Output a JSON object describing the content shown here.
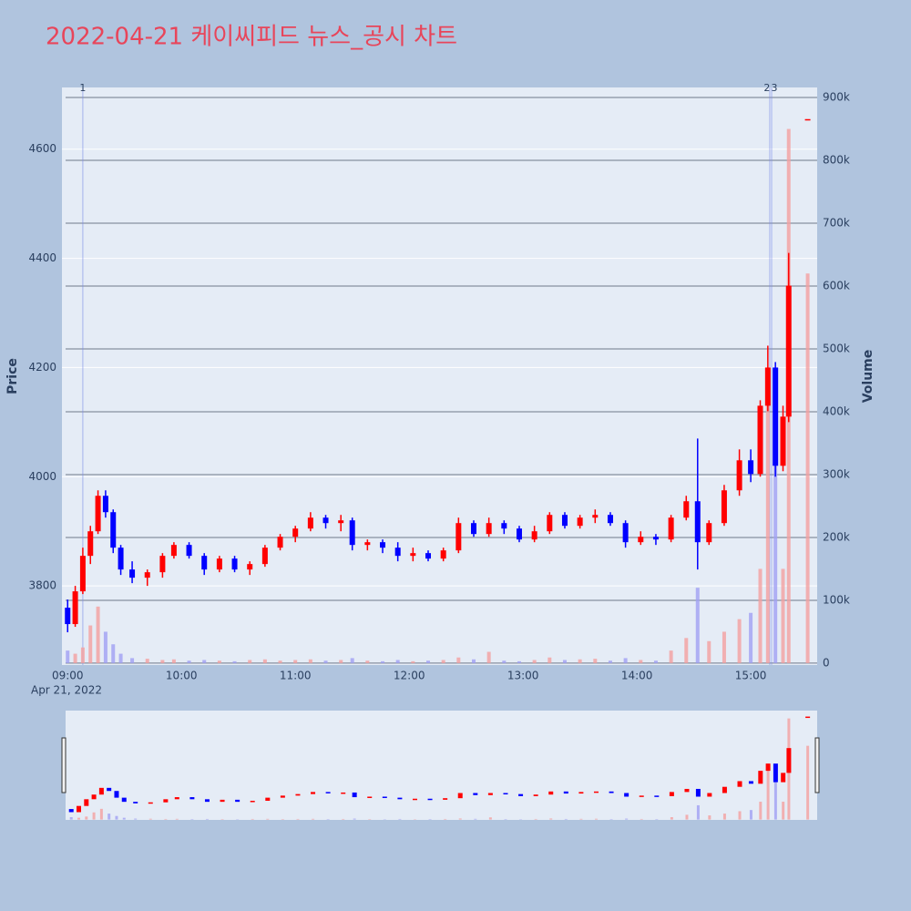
{
  "chart_data": {
    "type": "candlestick",
    "title": "2022-04-21 케이씨피드 뉴스_공시 차트",
    "ylabel": "Price",
    "y2label": "Volume",
    "date_label": "Apr 21, 2022",
    "x": [
      "09:00",
      "09:04",
      "09:08",
      "09:12",
      "09:16",
      "09:20",
      "09:24",
      "09:28",
      "09:34",
      "09:42",
      "09:50",
      "09:56",
      "10:04",
      "10:12",
      "10:20",
      "10:28",
      "10:36",
      "10:44",
      "10:52",
      "11:00",
      "11:08",
      "11:16",
      "11:24",
      "11:30",
      "11:38",
      "11:46",
      "11:54",
      "12:02",
      "12:10",
      "12:18",
      "12:26",
      "12:34",
      "12:42",
      "12:50",
      "12:58",
      "13:06",
      "13:14",
      "13:22",
      "13:30",
      "13:38",
      "13:46",
      "13:54",
      "14:02",
      "14:10",
      "14:18",
      "14:26",
      "14:32",
      "14:38",
      "14:46",
      "14:54",
      "15:00",
      "15:05",
      "15:09",
      "15:13",
      "15:17",
      "15:20",
      "15:30"
    ],
    "open": [
      3760,
      3730,
      3790,
      3855,
      3900,
      3965,
      3935,
      3870,
      3830,
      3815,
      3825,
      3855,
      3875,
      3855,
      3830,
      3850,
      3830,
      3840,
      3870,
      3890,
      3905,
      3925,
      3915,
      3920,
      3875,
      3880,
      3870,
      3855,
      3860,
      3850,
      3865,
      3915,
      3895,
      3915,
      3905,
      3885,
      3900,
      3930,
      3910,
      3925,
      3930,
      3915,
      3880,
      3890,
      3885,
      3925,
      3955,
      3880,
      3915,
      3975,
      4030,
      4005,
      4130,
      4200,
      4020,
      4110,
      4655
    ],
    "high": [
      3775,
      3800,
      3870,
      3910,
      3975,
      3975,
      3940,
      3875,
      3845,
      3830,
      3860,
      3880,
      3880,
      3860,
      3855,
      3855,
      3845,
      3875,
      3895,
      3910,
      3935,
      3930,
      3930,
      3925,
      3885,
      3885,
      3880,
      3870,
      3865,
      3870,
      3925,
      3920,
      3925,
      3920,
      3910,
      3910,
      3935,
      3935,
      3930,
      3940,
      3935,
      3920,
      3900,
      3895,
      3930,
      3965,
      4070,
      3920,
      3985,
      4050,
      4050,
      4140,
      4240,
      4210,
      4130,
      4410,
      4655
    ],
    "low": [
      3715,
      3725,
      3785,
      3840,
      3895,
      3925,
      3860,
      3820,
      3805,
      3800,
      3815,
      3850,
      3850,
      3820,
      3825,
      3825,
      3820,
      3835,
      3865,
      3880,
      3900,
      3905,
      3900,
      3865,
      3865,
      3860,
      3845,
      3845,
      3845,
      3845,
      3860,
      3890,
      3890,
      3895,
      3880,
      3880,
      3895,
      3905,
      3905,
      3915,
      3910,
      3870,
      3875,
      3875,
      3880,
      3920,
      3830,
      3875,
      3910,
      3965,
      3990,
      4000,
      4120,
      4000,
      4010,
      4100,
      4655
    ],
    "close": [
      3730,
      3790,
      3855,
      3900,
      3965,
      3935,
      3870,
      3830,
      3815,
      3825,
      3855,
      3875,
      3855,
      3830,
      3850,
      3830,
      3840,
      3870,
      3890,
      3905,
      3925,
      3915,
      3920,
      3875,
      3880,
      3870,
      3855,
      3860,
      3850,
      3865,
      3915,
      3895,
      3915,
      3905,
      3885,
      3900,
      3930,
      3910,
      3925,
      3930,
      3915,
      3880,
      3890,
      3885,
      3925,
      3955,
      3880,
      3915,
      3975,
      4030,
      4005,
      4130,
      4200,
      4020,
      4110,
      4350,
      4655
    ],
    "volume": [
      20000,
      15000,
      25000,
      60000,
      90000,
      50000,
      30000,
      15000,
      8000,
      7000,
      5000,
      6000,
      4000,
      5000,
      4000,
      3000,
      5000,
      6000,
      4000,
      5000,
      6000,
      4000,
      5000,
      8000,
      4000,
      3000,
      5000,
      3000,
      4000,
      5000,
      9000,
      6000,
      18000,
      4000,
      3000,
      5000,
      9000,
      5000,
      6000,
      7000,
      4000,
      8000,
      5000,
      4000,
      20000,
      40000,
      120000,
      35000,
      50000,
      70000,
      80000,
      150000,
      470000,
      380000,
      150000,
      850000,
      620000
    ],
    "increasing_color": "#ff0000",
    "decreasing_color": "#0000ff",
    "volume_increasing_color": "#f4a0a0",
    "volume_decreasing_color": "#a0a0f4",
    "title_color": "#e8455a",
    "xlim": [
      "08:57",
      "15:35"
    ],
    "xticks": [
      "09:00",
      "10:00",
      "11:00",
      "12:00",
      "13:00",
      "14:00",
      "15:00"
    ],
    "ylim": [
      3655,
      4713
    ],
    "yticks": [
      3800,
      4000,
      4200,
      4400,
      4600
    ],
    "y2lim": [
      -3000,
      916000
    ],
    "y2ticks": [
      0,
      {
        "value": 100000,
        "label": "100k"
      },
      {
        "value": 200000,
        "label": "200k"
      },
      {
        "value": 300000,
        "label": "300k"
      },
      {
        "value": 400000,
        "label": "400k"
      },
      {
        "value": 500000,
        "label": "500k"
      },
      {
        "value": 600000,
        "label": "600k"
      },
      {
        "value": 700000,
        "label": "700k"
      },
      {
        "value": 800000,
        "label": "800k"
      },
      {
        "value": 900000,
        "label": "900k"
      }
    ],
    "events": [
      {
        "label": "1",
        "x": "09:08"
      },
      {
        "label": "2",
        "x": "15:10"
      },
      {
        "label": "3",
        "x": "15:11"
      }
    ],
    "grid": true
  }
}
